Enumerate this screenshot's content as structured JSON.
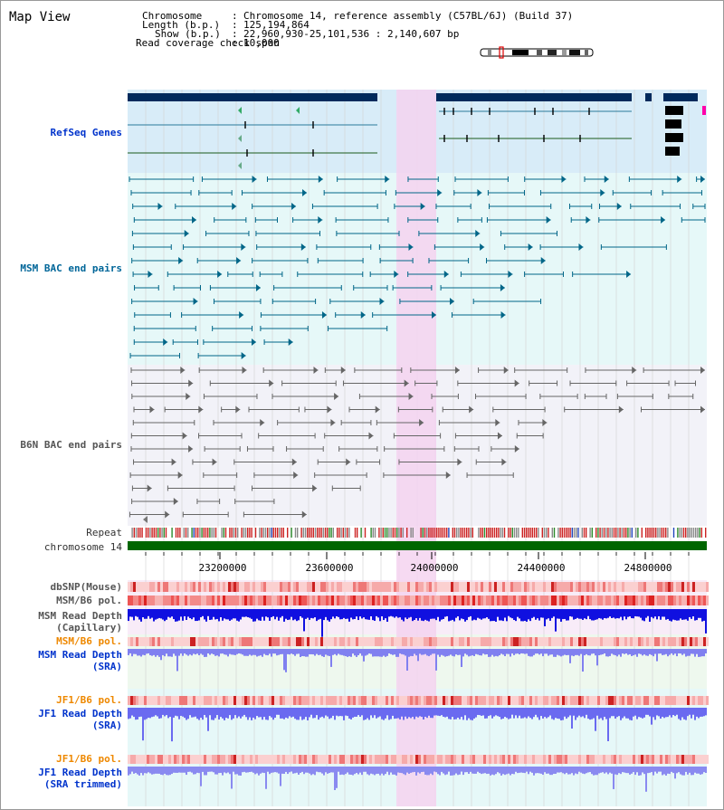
{
  "map_view": {
    "title": "Map View"
  },
  "header": {
    "chromosome_label": "Chromosome",
    "chromosome_value": "Chromosome 14, reference assembly (C57BL/6J) (Build 37)",
    "length_label": "Length (b.p.)",
    "length_value": "125,194,864",
    "show_label": "Show (b.p.)",
    "show_value": "22,960,930-25,101,536 : 2,140,607 bp",
    "coverage_label": "Read coverage check span",
    "coverage_value": "10,000"
  },
  "tracks": {
    "refseq": "RefSeq Genes",
    "msm_bac": "MSM BAC end pairs",
    "b6n_bac": "B6N BAC end pairs",
    "repeat": "Repeat",
    "chromosome": "chromosome 14",
    "dbsnp": "dbSNP(Mouse)",
    "msm_b6_pol": "MSM/B6 pol.",
    "msm_depth_cap_1": "MSM Read Depth",
    "msm_depth_cap_2": "(Capillary)",
    "msm_b6_pol_2": "MSM/B6 pol.",
    "msm_depth_sra_1": "MSM Read Depth",
    "msm_depth_sra_2": "(SRA)",
    "jf1_b6_pol": "JF1/B6 pol.",
    "jf1_depth_sra_1": "JF1 Read Depth",
    "jf1_depth_sra_2": "(SRA)",
    "jf1_b6_pol_2": "JF1/B6 pol.",
    "jf1_depth_trim_1": "JF1 Read Depth",
    "jf1_depth_trim_2": "(SRA trimmed)"
  },
  "axis": {
    "ticks": [
      "23200000",
      "23600000",
      "24000000",
      "24400000",
      "24800000"
    ]
  },
  "colors": {
    "refseq_bg": "#d8ecf8",
    "msm_bg": "#e6f8f8",
    "b6n_bg": "#f2f2f8",
    "highlight": "#f4d4f0",
    "chromosome_bar": "#006600",
    "msm_line": "#006688",
    "b6n_line": "#666666",
    "gene_dark": "#002a5c"
  }
}
